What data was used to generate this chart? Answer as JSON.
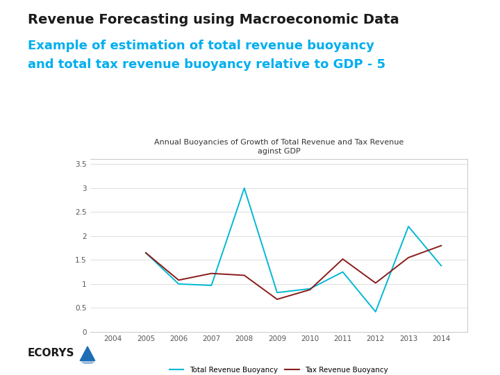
{
  "title_main": "Revenue Forecasting using Macroeconomic Data",
  "subtitle_line1": "Example of estimation of total revenue buoyancy",
  "subtitle_line2": "and total tax revenue buoyancy relative to GDP - 5",
  "chart_title": "Annual Buoyancies of Growth of Total Revenue and Tax Revenue\naginst GDP",
  "years": [
    2004,
    2005,
    2006,
    2007,
    2008,
    2009,
    2010,
    2011,
    2012,
    2013,
    2014
  ],
  "total_revenue_buoyancy": [
    null,
    1.65,
    1.0,
    0.97,
    3.0,
    0.82,
    0.9,
    1.25,
    0.42,
    2.2,
    1.38
  ],
  "tax_revenue_buoyancy": [
    null,
    1.65,
    1.08,
    1.22,
    1.18,
    0.68,
    0.88,
    1.52,
    1.02,
    1.55,
    1.8
  ],
  "total_revenue_color": "#00B8D4",
  "tax_revenue_color": "#8B1A1A",
  "ylim": [
    0,
    3.6
  ],
  "yticks": [
    0,
    0.5,
    1,
    1.5,
    2,
    2.5,
    3,
    3.5
  ],
  "background_color": "#FFFFFF",
  "chart_bg_color": "#FFFFFF",
  "legend_label_total": "Total Revenue Buoyancy",
  "legend_label_tax": "Tax Revenue Buoyancy",
  "title_color": "#1A1A1A",
  "subtitle_color": "#00AEEF",
  "grid_color": "#DDDDDD",
  "border_color": "#CCCCCC",
  "tick_color": "#555555",
  "ecorys_color": "#1A1A1A",
  "ecorys_triangle_color": "#1E6DB5"
}
